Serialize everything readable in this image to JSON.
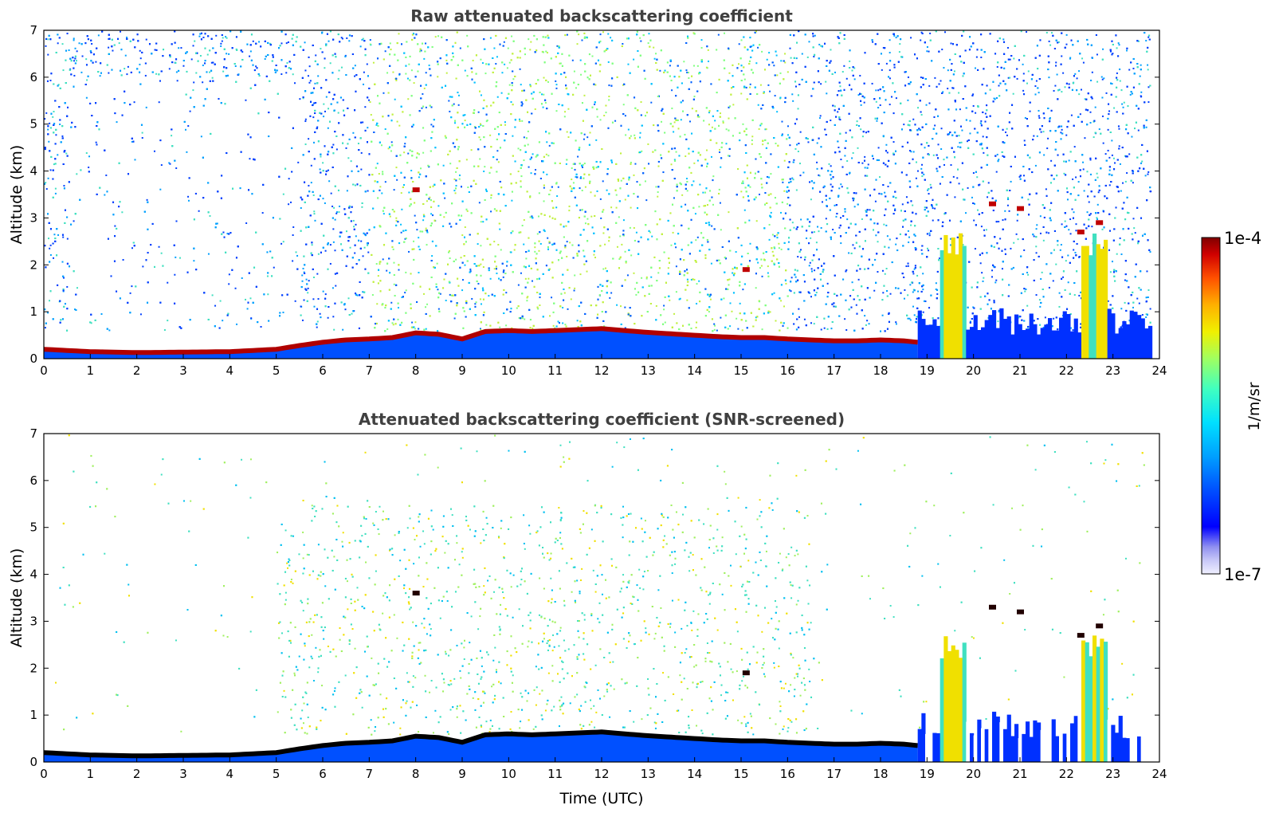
{
  "chart_data": [
    {
      "type": "heatmap",
      "title": "Raw attenuated backscattering coefficient",
      "xlabel": "",
      "ylabel": "Altitude (km)",
      "xlim": [
        0,
        24
      ],
      "ylim": [
        0,
        7
      ],
      "x_ticks": [
        "0",
        "1",
        "2",
        "3",
        "4",
        "5",
        "6",
        "7",
        "8",
        "9",
        "10",
        "11",
        "12",
        "13",
        "14",
        "15",
        "16",
        "17",
        "18",
        "19",
        "20",
        "21",
        "22",
        "23",
        "24"
      ],
      "y_ticks": [
        "0",
        "1",
        "2",
        "3",
        "4",
        "5",
        "6",
        "7"
      ],
      "boundary_layer_top_km": {
        "x": [
          0,
          1,
          2,
          3,
          4,
          5,
          5.5,
          6,
          6.5,
          7,
          7.5,
          8,
          8.5,
          9,
          9.5,
          10,
          10.5,
          11,
          11.5,
          12,
          12.5,
          13,
          13.5,
          14,
          14.5,
          15,
          15.5,
          16,
          16.5,
          17,
          17.5,
          18,
          18.5,
          18.8
        ],
        "y": [
          0.2,
          0.15,
          0.13,
          0.14,
          0.15,
          0.2,
          0.28,
          0.35,
          0.4,
          0.42,
          0.45,
          0.55,
          0.52,
          0.42,
          0.58,
          0.6,
          0.58,
          0.6,
          0.62,
          0.64,
          0.6,
          0.56,
          0.53,
          0.5,
          0.47,
          0.45,
          0.45,
          0.42,
          0.4,
          0.38,
          0.38,
          0.4,
          0.38,
          0.35
        ]
      },
      "cloud_features": [
        {
          "x": 8.0,
          "y_km": 3.6
        },
        {
          "x": 15.1,
          "y_km": 1.9
        },
        {
          "x": 20.4,
          "y_km": 3.3
        },
        {
          "x": 21.0,
          "y_km": 3.2
        },
        {
          "x": 22.7,
          "y_km": 2.9
        },
        {
          "x": 22.3,
          "y_km": 2.7
        }
      ]
    },
    {
      "type": "heatmap",
      "title": "Attenuated backscattering coefficient (SNR-screened)",
      "xlabel": "Time (UTC)",
      "ylabel": "Altitude (km)",
      "xlim": [
        0,
        24
      ],
      "ylim": [
        0,
        7
      ],
      "x_ticks": [
        "0",
        "1",
        "2",
        "3",
        "4",
        "5",
        "6",
        "7",
        "8",
        "9",
        "10",
        "11",
        "12",
        "13",
        "14",
        "15",
        "16",
        "17",
        "18",
        "19",
        "20",
        "21",
        "22",
        "23",
        "24"
      ],
      "y_ticks": [
        "0",
        "1",
        "2",
        "3",
        "4",
        "5",
        "6",
        "7"
      ]
    }
  ],
  "colorbar": {
    "min_label": "1e-7",
    "max_label": "1e-4",
    "unit_label": "1/m/sr",
    "colors": [
      "#f0f0ff",
      "#c8c8f8",
      "#9090f0",
      "#0000ff",
      "#0050ff",
      "#00a0ff",
      "#00e0ff",
      "#40ffc0",
      "#a0ff60",
      "#f0f000",
      "#ffb000",
      "#ff5000",
      "#d00000",
      "#800000"
    ]
  }
}
